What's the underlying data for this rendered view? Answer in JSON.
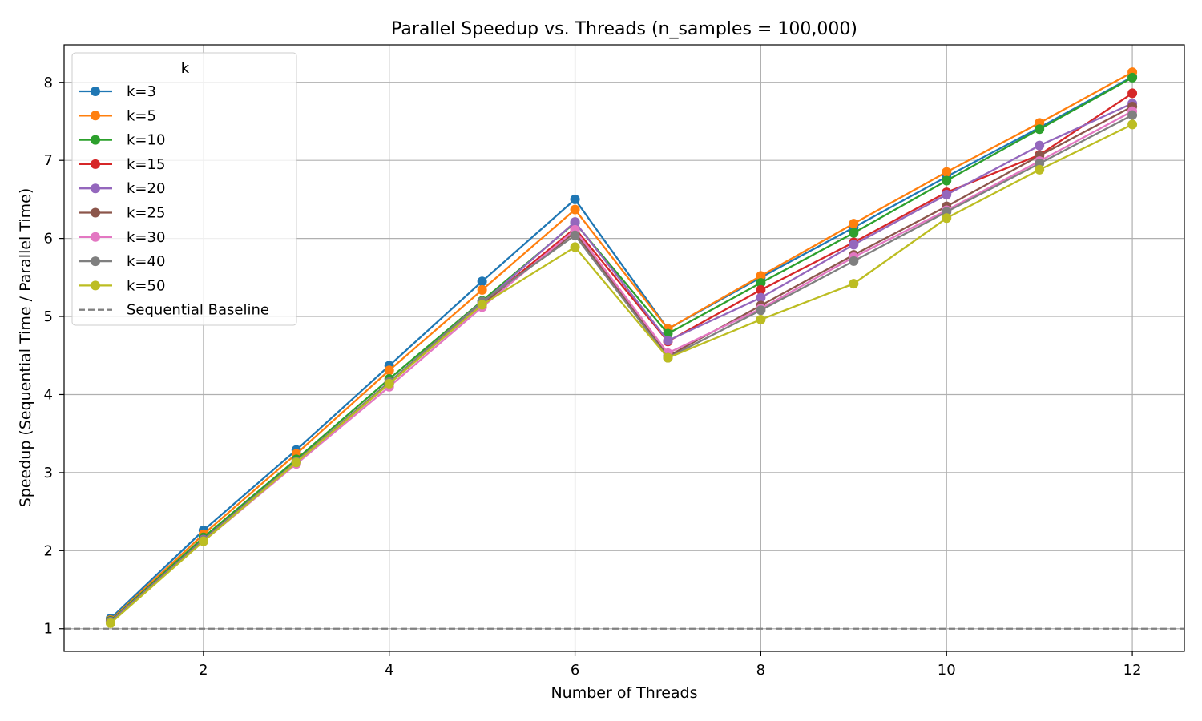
{
  "chart_data": {
    "type": "line",
    "title": "Parallel Speedup vs. Threads (n_samples = 100,000)",
    "xlabel": "Number of Threads",
    "ylabel": "Speedup (Sequential Time / Parallel Time)",
    "x": [
      1,
      2,
      3,
      4,
      5,
      6,
      7,
      8,
      9,
      10,
      11,
      12
    ],
    "xlim": [
      0.5,
      12.56
    ],
    "ylim": [
      0.71,
      8.48
    ],
    "xticks": [
      2,
      4,
      6,
      8,
      10,
      12
    ],
    "yticks": [
      1,
      2,
      3,
      4,
      5,
      6,
      7,
      8
    ],
    "grid": true,
    "legend": {
      "title": "k",
      "location": "top-left"
    },
    "series": [
      {
        "name": "k=3",
        "color": "#1f77b4",
        "values": [
          1.13,
          2.26,
          3.29,
          4.37,
          5.45,
          6.5,
          4.84,
          5.5,
          6.14,
          6.79,
          7.42,
          8.07
        ]
      },
      {
        "name": "k=5",
        "color": "#ff7f0e",
        "values": [
          1.11,
          2.21,
          3.24,
          4.31,
          5.34,
          6.37,
          4.84,
          5.52,
          6.19,
          6.85,
          7.48,
          8.13
        ]
      },
      {
        "name": "k=10",
        "color": "#2ca02c",
        "values": [
          1.1,
          2.17,
          3.17,
          4.2,
          5.2,
          6.2,
          4.78,
          5.43,
          6.07,
          6.74,
          7.4,
          8.06
        ]
      },
      {
        "name": "k=15",
        "color": "#d62728",
        "values": [
          1.09,
          2.14,
          3.14,
          4.16,
          5.16,
          6.13,
          4.68,
          5.34,
          5.95,
          6.59,
          7.07,
          7.86
        ]
      },
      {
        "name": "k=20",
        "color": "#9467bd",
        "values": [
          1.09,
          2.14,
          3.14,
          4.15,
          5.17,
          6.21,
          4.69,
          5.24,
          5.92,
          6.56,
          7.19,
          7.73
        ]
      },
      {
        "name": "k=25",
        "color": "#8c564b",
        "values": [
          1.08,
          2.13,
          3.13,
          4.14,
          5.15,
          6.08,
          4.49,
          5.14,
          5.79,
          6.41,
          7.06,
          7.69
        ]
      },
      {
        "name": "k=30",
        "color": "#e377c2",
        "values": [
          1.08,
          2.12,
          3.11,
          4.1,
          5.12,
          6.11,
          4.53,
          5.1,
          5.76,
          6.36,
          6.99,
          7.63
        ]
      },
      {
        "name": "k=40",
        "color": "#7f7f7f",
        "values": [
          1.08,
          2.13,
          3.14,
          4.16,
          5.19,
          6.04,
          4.47,
          5.08,
          5.71,
          6.34,
          6.96,
          7.58
        ]
      },
      {
        "name": "k=50",
        "color": "#bcbd22",
        "values": [
          1.07,
          2.12,
          3.13,
          4.14,
          5.15,
          5.89,
          4.47,
          4.96,
          5.42,
          6.26,
          6.88,
          7.46
        ]
      }
    ],
    "baseline": {
      "name": "Sequential Baseline",
      "value": 1.0,
      "color": "#808080",
      "style": "dashed"
    }
  }
}
